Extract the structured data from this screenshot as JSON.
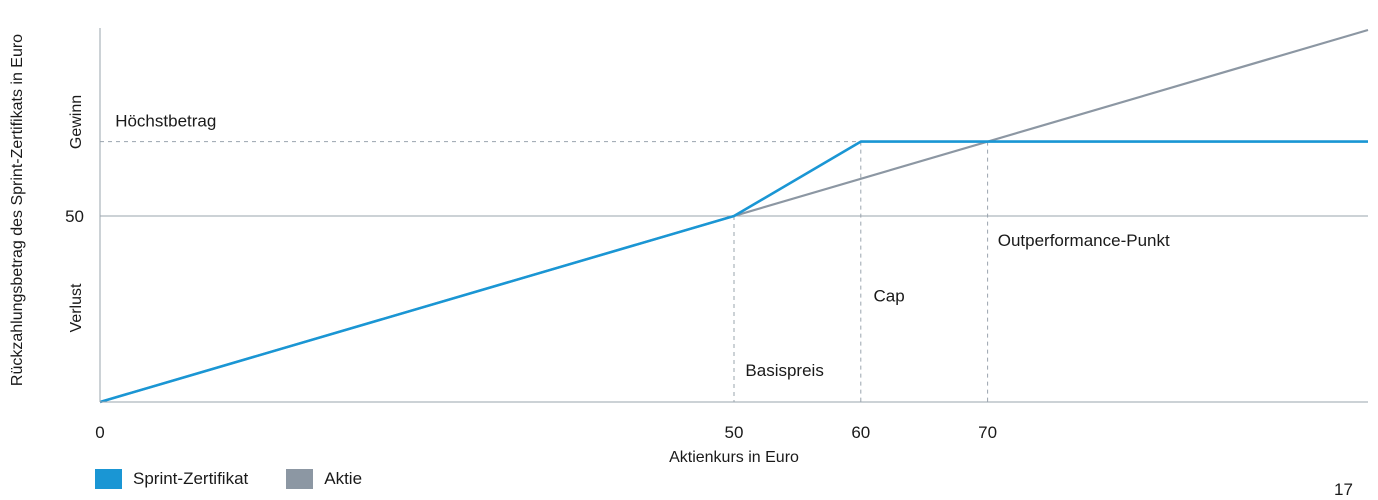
{
  "chart_data": {
    "type": "line",
    "title": "",
    "xlabel": "Aktienkurs in Euro",
    "ylabel": "Rückzahlungsbetrag des Sprint-Zertifikats in Euro",
    "xlim": [
      0,
      100
    ],
    "ylim": [
      0,
      92
    ],
    "x_ticks": [
      {
        "value": 0,
        "label": "0"
      },
      {
        "value": 50,
        "label": "50"
      },
      {
        "value": 60,
        "label": "60"
      },
      {
        "value": 70,
        "label": "70"
      }
    ],
    "y_ticks": [
      {
        "value": 50,
        "label": "50"
      }
    ],
    "y_region_labels": {
      "gain": "Gewinn",
      "loss": "Verlust"
    },
    "series": [
      {
        "name": "Sprint-Zertifikat",
        "color": "#1a96d4",
        "x": [
          0,
          50,
          60,
          100
        ],
        "y": [
          0,
          50,
          70,
          70
        ]
      },
      {
        "name": "Aktie",
        "color": "#8c97a3",
        "x": [
          0,
          100
        ],
        "y": [
          0,
          100
        ]
      }
    ],
    "reference_lines": {
      "horizontal_y": 50,
      "max_level_y": 70,
      "vertical_x": [
        50,
        60,
        70
      ]
    },
    "annotations": [
      {
        "text": "Höchstbetrag",
        "x": 1.2,
        "y": 74
      },
      {
        "text": "Outperformance-Punkt",
        "x": 70.8,
        "y": 42
      },
      {
        "text": "Cap",
        "x": 61,
        "y": 27
      },
      {
        "text": "Basispreis",
        "x": 50.9,
        "y": 7
      }
    ],
    "grid": false,
    "legend": "bottom-left"
  },
  "page_number": "17"
}
